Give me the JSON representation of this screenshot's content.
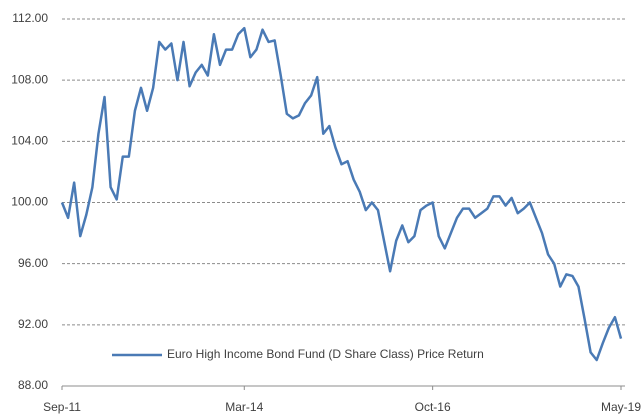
{
  "chart_data": {
    "type": "line",
    "x": [
      0,
      1,
      2,
      3,
      4,
      5,
      6,
      7,
      8,
      9,
      10,
      11,
      12,
      13,
      14,
      15,
      16,
      17,
      18,
      19,
      20,
      21,
      22,
      23,
      24,
      25,
      26,
      27,
      28,
      29,
      30,
      31,
      32,
      33,
      34,
      35,
      36,
      37,
      38,
      39,
      40,
      41,
      42,
      43,
      44,
      45,
      46,
      47,
      48,
      49,
      50,
      51,
      52,
      53,
      54,
      55,
      56,
      57,
      58,
      59,
      60,
      61,
      62,
      63,
      64,
      65,
      66,
      67,
      68,
      69,
      70,
      71,
      72,
      73,
      74,
      75,
      76,
      77,
      78,
      79,
      80,
      81,
      82,
      83,
      84,
      85,
      86,
      87,
      88,
      89,
      90,
      91,
      92
    ],
    "series": [
      {
        "name": "Euro High Income Bond Fund (D Share Class) Price Return",
        "color": "#4a7ab5",
        "values": [
          100,
          99,
          101.3,
          97.8,
          99.2,
          101,
          104.5,
          106.9,
          101,
          100.2,
          103,
          103,
          106,
          107.5,
          106,
          107.5,
          110.5,
          110,
          110.4,
          108,
          110.5,
          107.6,
          108.5,
          109,
          108.3,
          111,
          109,
          110,
          110,
          111,
          111.4,
          109.5,
          110,
          111.3,
          110.5,
          110.6,
          108.3,
          105.8,
          105.5,
          105.7,
          106.5,
          107,
          108.2,
          104.5,
          105,
          103.6,
          102.5,
          102.7,
          101.5,
          100.7,
          99.5,
          100,
          99.5,
          97.5,
          95.5,
          97.5,
          98.5,
          97.4,
          97.8,
          99.5,
          99.8,
          100,
          97.8,
          97,
          98,
          99,
          99.6,
          99.6,
          99,
          99.3,
          99.6,
          100.4,
          100.4,
          99.8,
          100.3,
          99.3,
          99.6,
          100,
          99,
          98,
          96.6,
          96,
          94.5,
          95.3,
          95.2,
          94.5,
          92.4,
          90.2,
          89.7,
          90.8,
          91.8,
          92.5,
          91.1
        ]
      }
    ],
    "xlim": [
      0,
      92
    ],
    "xticks": [
      {
        "value": 0,
        "label": "Sep-11"
      },
      {
        "value": 30,
        "label": "Mar-14"
      },
      {
        "value": 61,
        "label": "Oct-16"
      },
      {
        "value": 92,
        "label": "May-19"
      }
    ],
    "ylim": [
      88,
      112
    ],
    "yticks": [
      {
        "value": 88,
        "label": "88.00"
      },
      {
        "value": 92,
        "label": "92.00"
      },
      {
        "value": 96,
        "label": "96.00"
      },
      {
        "value": 100,
        "label": "100.00"
      },
      {
        "value": 104,
        "label": "104.00"
      },
      {
        "value": 108,
        "label": "108.00"
      },
      {
        "value": 112,
        "label": "112.00"
      }
    ],
    "grid": true,
    "legend": "lower center"
  }
}
